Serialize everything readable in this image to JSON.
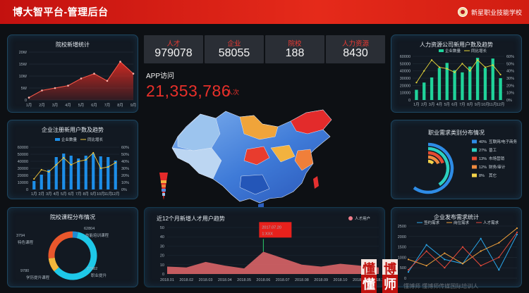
{
  "header": {
    "title": "博大智平台-管理后台",
    "school": "新星职业技能学校"
  },
  "stats": [
    {
      "label": "人才",
      "value": "979078"
    },
    {
      "label": "企业",
      "value": "58055"
    },
    {
      "label": "院校",
      "value": "188"
    },
    {
      "label": "人力资源",
      "value": "8430"
    }
  ],
  "app": {
    "label": "APP访问",
    "value": "21,353,786",
    "unit": "人次"
  },
  "watermark": {
    "left_top": "懂",
    "left_bottom": "懂",
    "right_top": "博",
    "right_bottom": "师",
    "caption": "懂博师 懂博师传媒国际培训人"
  },
  "chart_data": [
    {
      "id": "school_growth",
      "type": "area",
      "title": "院校新增统计",
      "categories": [
        "1月",
        "2月",
        "3月",
        "4月",
        "5月",
        "6月",
        "7月",
        "8月",
        "9月"
      ],
      "values": [
        1,
        4,
        5,
        6,
        9,
        11,
        8,
        16,
        11
      ],
      "yticks": [
        "0",
        "5W",
        "10W",
        "15W",
        "20W"
      ],
      "ylim": [
        0,
        20
      ],
      "color": "#e12b22"
    },
    {
      "id": "enterprise_users",
      "type": "bar",
      "title": "企业注册新用户数及趋势",
      "categories": [
        "1月",
        "2月",
        "3月",
        "4月",
        "5月",
        "6月",
        "7月",
        "8月",
        "9月",
        "10月",
        "11月",
        "12月"
      ],
      "series": [
        {
          "name": "企业数量",
          "values": [
            12000,
            21000,
            28000,
            46000,
            51000,
            48000,
            44000,
            48000,
            51000,
            47000,
            46000,
            41000
          ]
        },
        {
          "name": "同比增长",
          "values": [
            15,
            28,
            25,
            35,
            45,
            35,
            40,
            42,
            52,
            30,
            32,
            38
          ]
        }
      ],
      "yticks": [
        "0",
        "10000",
        "20000",
        "30000",
        "40000",
        "50000",
        "60000"
      ],
      "y2ticks": [
        "0%",
        "10%",
        "20%",
        "30%",
        "40%",
        "50%",
        "60%"
      ],
      "ylim": [
        0,
        60000
      ],
      "y2lim": [
        0,
        60
      ]
    },
    {
      "id": "course_dist",
      "type": "pie",
      "title": "院校课程分布情况",
      "labels": [
        "特色课程",
        "技能培训课程",
        "学历提升课程",
        "职业提升"
      ],
      "values": [
        3794,
        62804,
        9780,
        27982
      ],
      "colors": [
        "#1f8ad1",
        "#1ec8e8",
        "#f2b73b",
        "#e9572c"
      ]
    },
    {
      "id": "talent_trend",
      "type": "area",
      "title": "近12个月新增人才用户趋势",
      "legend": "人才用户",
      "x": [
        "2018.01",
        "2018.02",
        "2018.03",
        "2018.04",
        "2018.05",
        "2018.06",
        "2018.07",
        "2018.08",
        "2018.09",
        "2018.10",
        "2018.11",
        "2018.12"
      ],
      "values": [
        8,
        7,
        13,
        9,
        6,
        24,
        17,
        10,
        8,
        11,
        9,
        7
      ],
      "yticks": [
        "0",
        "10",
        "20",
        "30",
        "40",
        "50"
      ],
      "ylim": [
        0,
        50
      ],
      "tooltip": {
        "date": "2017.07.20",
        "value": "1:XXX"
      }
    },
    {
      "id": "hr_users",
      "type": "bar",
      "title": "人力资源公司新用户数及趋势",
      "categories": [
        "1月",
        "2月",
        "3月",
        "4月",
        "5月",
        "6月",
        "7月",
        "8月",
        "9月",
        "10月",
        "11月",
        "12月"
      ],
      "series": [
        {
          "name": "企业数量",
          "values": [
            14000,
            24000,
            31000,
            44000,
            51000,
            41000,
            38000,
            46000,
            58000,
            44000,
            57000,
            30000
          ]
        },
        {
          "name": "同比增长",
          "values": [
            24,
            40,
            55,
            45,
            43,
            38,
            50,
            40,
            55,
            45,
            48,
            35
          ]
        }
      ],
      "yticks": [
        "0",
        "10000",
        "20000",
        "30000",
        "40000",
        "50000",
        "60000"
      ],
      "y2ticks": [
        "0%",
        "10%",
        "20%",
        "30%",
        "40%",
        "50%",
        "60%"
      ],
      "ylim": [
        0,
        60000
      ],
      "y2lim": [
        0,
        60
      ]
    },
    {
      "id": "job_categories",
      "type": "pie",
      "title": "职业需求类别分布情况",
      "labels": [
        "互联网/电子商务",
        "普工",
        "市场营销",
        "财务/审计",
        "其它"
      ],
      "values": [
        40,
        27,
        13,
        12,
        8
      ],
      "percent_labels": [
        "40%",
        "27%",
        "13%",
        "12%",
        "8%"
      ],
      "colors": [
        "#2e8ce6",
        "#2bd0c0",
        "#e44a32",
        "#f08a3e",
        "#f4d34a"
      ]
    },
    {
      "id": "enterprise_demand",
      "type": "line",
      "title": "企业发布需求统计",
      "series": [
        {
          "name": "签约需求",
          "values": [
            300,
            1600,
            900,
            700,
            1900,
            400,
            2100
          ]
        },
        {
          "name": "岗位需求",
          "values": [
            900,
            600,
            1200,
            700,
            1300,
            1700,
            2400
          ]
        },
        {
          "name": "人才需求",
          "values": [
            400,
            1300,
            500,
            1500,
            600,
            1000,
            2200
          ]
        }
      ],
      "yticks": [
        "0",
        "500",
        "1000",
        "1500",
        "2000",
        "2500"
      ],
      "ylim": [
        0,
        2500
      ]
    }
  ]
}
